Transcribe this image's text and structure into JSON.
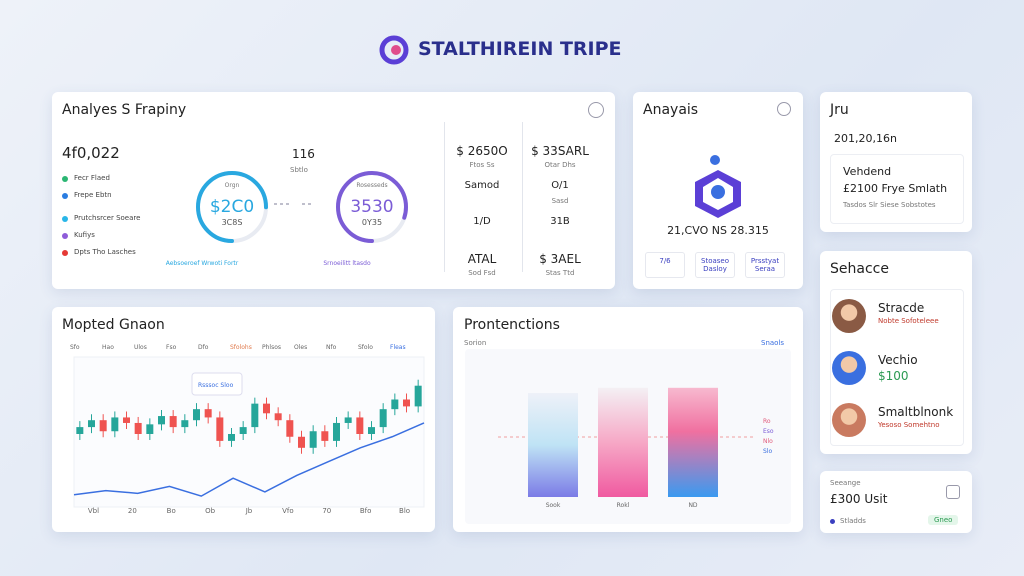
{
  "header": {
    "title": "STALTHIREIN TRIPE"
  },
  "overview": {
    "title": "Analyes S Frapiny",
    "total": "4f0,022",
    "legend": [
      {
        "label": "Fecr Flaed",
        "color": "#2bb673"
      },
      {
        "label": "Frepe Ebtn",
        "color": "#2a7de1"
      },
      {
        "label": "Prutchsrcer Soeare",
        "color": "#29b6e8"
      },
      {
        "label": "Kufiys",
        "color": "#8e5cd9"
      },
      {
        "label": "Dpts Tho Lasches",
        "color": "#e53935"
      }
    ],
    "center_label": "116",
    "center_sub": "Sbtlo",
    "gauges": [
      {
        "label": "Orgn",
        "value_text": "$2C0",
        "sub": "3C8S",
        "progress": 75,
        "caption": "Aebsoeroef Wrwoti Fortr",
        "color": "#29a8e0"
      },
      {
        "label": "Rosesseds",
        "value_text": "3530",
        "sub": "0Y35",
        "progress": 80,
        "caption": "Srnoeilitt ltasdo",
        "color": "#7b5cd6"
      }
    ],
    "stats": [
      {
        "value": "$ 2650O",
        "sub": "Ftos Ss"
      },
      {
        "value": "$ 33SARL",
        "sub": "Otar Dhs"
      },
      {
        "value": "Samod",
        "sub": ""
      },
      {
        "value": "O/1",
        "sub": "Sasd"
      },
      {
        "value": "1/D",
        "sub": ""
      },
      {
        "value": "31B",
        "sub": ""
      },
      {
        "value": "ATAL",
        "sub": "Sod Fsd"
      },
      {
        "value": "$ 3AEL",
        "sub": "Stas Ttd"
      }
    ]
  },
  "analysis": {
    "title": "Anayais",
    "value": "21,CVO NS 28.315",
    "chips": [
      "7/6",
      "Stoaseo Dasloy",
      "Prsstyat Seraa"
    ]
  },
  "account": {
    "title": "Jru",
    "date": "201,20,16n",
    "card": {
      "label": "Vehdend",
      "value": "£2100 Frye Smlath",
      "note": "Tasdos Slr Siese Sobstotes"
    }
  },
  "people": {
    "title": "Sehacce",
    "items": [
      {
        "name": "Stracde",
        "detail": "Nobte Sofoteleee"
      },
      {
        "name": "Vechio",
        "detail": "$100"
      },
      {
        "name": "Smaltblnonk",
        "detail": "Yesoso Somehtno"
      }
    ]
  },
  "settings": {
    "title": "Seeange",
    "value": "£300 Usit",
    "tag": "Stladds",
    "button": "Gneo"
  },
  "market": {
    "title": "Mopted Gnaon",
    "tabs": [
      "Sfo",
      "Hao",
      "Ulos",
      "Fso",
      "Dfo",
      "Sfolohs",
      "Phlsos",
      "Oles",
      "Nfo",
      "Sfolo",
      "Fleas"
    ],
    "tooltip": "Rsssoc Sloo",
    "x_labels": [
      "Vbl",
      "20",
      "Bo",
      "Ob",
      "Jb",
      "Vfo",
      "70",
      "Bfo",
      "Blo"
    ],
    "ylim": [
      0,
      100
    ],
    "open": [
      50,
      55,
      60,
      52,
      62,
      58,
      50,
      57,
      63,
      55,
      60,
      68,
      62,
      45,
      50,
      55,
      72,
      65,
      60,
      48,
      40,
      52,
      45,
      58,
      62,
      50,
      55,
      68,
      75,
      70
    ],
    "close": [
      55,
      60,
      52,
      62,
      58,
      50,
      57,
      63,
      55,
      60,
      68,
      62,
      45,
      50,
      55,
      72,
      65,
      60,
      48,
      40,
      52,
      45,
      58,
      62,
      50,
      55,
      68,
      75,
      70,
      85
    ],
    "line": [
      6,
      9,
      7,
      12,
      5,
      18,
      8,
      20,
      30,
      40,
      48,
      58
    ]
  },
  "projections": {
    "title": "Prontenctions",
    "legend": "Sorion",
    "button": "Snaols",
    "categories": [
      "Sook",
      "Rokl",
      "ND"
    ],
    "values": [
      80,
      84,
      84
    ],
    "ylim": [
      0,
      100
    ],
    "side_legend": [
      "Ro",
      "Eso",
      "Nlo",
      "Slo"
    ]
  }
}
